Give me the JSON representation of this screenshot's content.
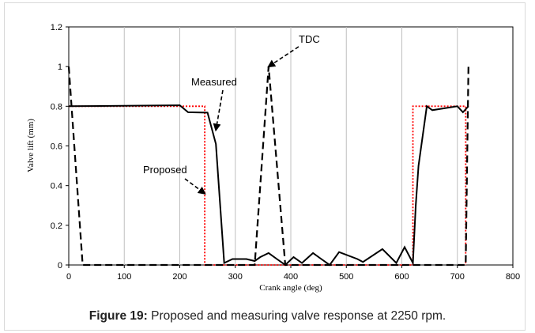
{
  "chart_data": {
    "type": "line",
    "xlabel": "Crank angle (deg)",
    "ylabel": "Valve lift (mm)",
    "xlim": [
      0,
      800
    ],
    "ylim": [
      0,
      1.2
    ],
    "xticks": [
      "0",
      "100",
      "200",
      "300",
      "400",
      "500",
      "600",
      "700",
      "800"
    ],
    "yticks": [
      "0",
      "0.2",
      "0.4",
      "0.6",
      "0.8",
      "1",
      "1.2"
    ],
    "grid": "vertical",
    "series": [
      {
        "name": "Proposed",
        "color": "#ff0000",
        "style": "dotted",
        "x": [
          0,
          245,
          245,
          620,
          620,
          715,
          715
        ],
        "y": [
          0.8,
          0.8,
          0,
          0,
          0.8,
          0.8,
          0
        ]
      },
      {
        "name": "Measured",
        "color": "#000000",
        "style": "solid",
        "x": [
          0,
          200,
          215,
          250,
          265,
          280,
          295,
          320,
          335,
          345,
          360,
          375,
          390,
          405,
          420,
          440,
          455,
          470,
          487,
          520,
          530,
          565,
          590,
          605,
          620,
          625,
          630,
          645,
          655,
          700,
          710,
          720
        ],
        "y": [
          0.8,
          0.805,
          0.77,
          0.768,
          0.61,
          0.01,
          0.03,
          0.03,
          0.02,
          0.04,
          0.06,
          0.03,
          0.0,
          0.04,
          0.01,
          0.06,
          0.03,
          0.0,
          0.065,
          0.03,
          0.015,
          0.08,
          0.01,
          0.09,
          0.01,
          0.3,
          0.5,
          0.8,
          0.78,
          0.8,
          0.77,
          0.8
        ]
      },
      {
        "name": "TDC",
        "color": "#000000",
        "style": "dashed",
        "x": [
          0,
          25,
          335,
          360,
          390,
          715,
          720
        ],
        "y": [
          1.0,
          0.0,
          0.0,
          1.0,
          0.0,
          0.0,
          1.0
        ]
      }
    ],
    "annotations": [
      {
        "text": "TDC",
        "target": [
          360,
          1.0
        ]
      },
      {
        "text": "Measured",
        "target": [
          265,
          0.68
        ]
      },
      {
        "text": "Proposed",
        "target": [
          245,
          0.36
        ]
      }
    ]
  },
  "caption": {
    "label": "Figure 19:",
    "text": " Proposed and measuring valve response at 2250 rpm."
  }
}
